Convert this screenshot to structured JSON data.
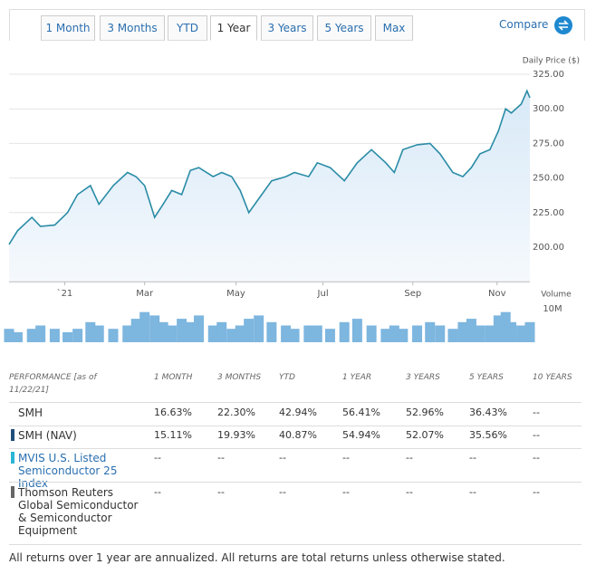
{
  "tabs": {
    "items": [
      "1 Month",
      "3 Months",
      "YTD",
      "1 Year",
      "3 Years",
      "5 Years",
      "Max"
    ],
    "active": 3,
    "compare": "Compare"
  },
  "chart_data": {
    "type": "line",
    "y_axis_label": "Daily Price ($)",
    "x": [
      0,
      6,
      16,
      22,
      32,
      41,
      48,
      57,
      63,
      73,
      83,
      89,
      95,
      102,
      108,
      114,
      121,
      127,
      133,
      143,
      149,
      156,
      162,
      168,
      175,
      184,
      194,
      200,
      210,
      216,
      225,
      235,
      244,
      254,
      264,
      270,
      276,
      286,
      295,
      302,
      311,
      318,
      324,
      330,
      337,
      343,
      348,
      352,
      359,
      363,
      365
    ],
    "xlim": [
      0,
      365
    ],
    "xticks": [
      {
        "value": 39,
        "label": "`21"
      },
      {
        "value": 95,
        "label": "Mar"
      },
      {
        "value": 159,
        "label": "May"
      },
      {
        "value": 220,
        "label": "Jul"
      },
      {
        "value": 283,
        "label": "Sep"
      },
      {
        "value": 342,
        "label": "Nov"
      }
    ],
    "ylim": [
      175,
      336
    ],
    "yticks": [
      {
        "value": 200,
        "label": "200.00"
      },
      {
        "value": 225,
        "label": "225.00"
      },
      {
        "value": 250,
        "label": "250.00"
      },
      {
        "value": 275,
        "label": "275.00"
      },
      {
        "value": 300,
        "label": "300.00"
      },
      {
        "value": 325,
        "label": "325.00"
      }
    ],
    "grid": true,
    "series": [
      {
        "name": "Price",
        "color": "#2a8ca6",
        "values": [
          202,
          212,
          221.5,
          215,
          216,
          225,
          238,
          244.5,
          231,
          244.5,
          254,
          251,
          244.5,
          221.5,
          231,
          241,
          238,
          255.5,
          257.5,
          251,
          254,
          251,
          241,
          225,
          235,
          248,
          251,
          254,
          251,
          261,
          257.5,
          248,
          261,
          270.5,
          261,
          254,
          270.5,
          274,
          275,
          267.5,
          254,
          251,
          257.5,
          267.5,
          270.5,
          284,
          300,
          297,
          303.5,
          313,
          308
        ]
      },
      {
        "name": "Volume",
        "axis": "y2",
        "color": "#7db6df",
        "values": [
          4,
          3,
          4,
          5,
          4,
          3,
          4,
          6,
          5,
          4,
          5,
          7,
          9,
          8,
          6,
          5,
          7,
          6,
          8,
          5,
          6,
          4,
          5,
          7,
          8,
          6,
          5,
          4,
          5,
          5,
          4,
          6,
          7,
          5,
          4,
          5,
          4,
          5,
          6,
          5,
          4,
          6,
          7,
          5,
          5,
          8,
          9,
          6,
          5,
          4,
          6
        ]
      }
    ],
    "y2_axis_label": "Volume",
    "y2lim": [
      0,
      10
    ],
    "y2ticks": [
      {
        "value": 10,
        "label": "10M"
      }
    ]
  },
  "table": {
    "headers": [
      "PERFORMANCE [as of 11/22/21]",
      "1 MONTH",
      "3 MONTHS",
      "YTD",
      "1 YEAR",
      "3 YEARS",
      "5 YEARS",
      "10 YEARS"
    ],
    "rows": [
      {
        "name": "SMH",
        "cells": [
          "16.63%",
          "22.30%",
          "42.94%",
          "56.41%",
          "52.96%",
          "36.43%",
          "--"
        ]
      },
      {
        "name": "SMH (NAV)",
        "color": "#1f4e79",
        "cells": [
          "15.11%",
          "19.93%",
          "40.87%",
          "54.94%",
          "52.07%",
          "35.56%",
          "--"
        ]
      },
      {
        "name": "MVIS U.S. Listed Semiconductor 25 Index",
        "color": "#29b6d6",
        "cells": [
          "--",
          "--",
          "--",
          "--",
          "--",
          "--",
          "--"
        ]
      },
      {
        "name": "Thomson Reuters Global Semiconductor & Semiconductor Equipment",
        "color": "#666666",
        "cells": [
          "--",
          "--",
          "--",
          "--",
          "--",
          "--",
          "--"
        ]
      }
    ],
    "note": "All returns over 1 year are annualized. All returns are total returns unless otherwise stated."
  }
}
